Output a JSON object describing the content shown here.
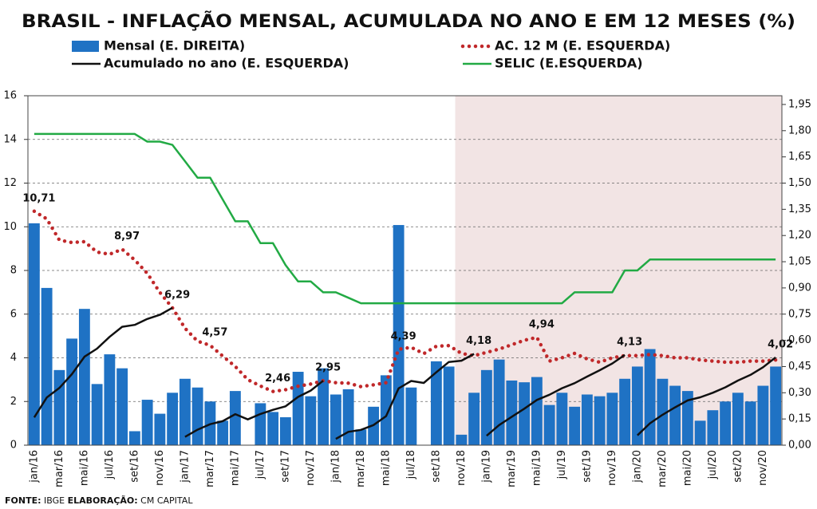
{
  "chart_data": {
    "type": "combo",
    "title": "BRASIL - INFLAÇÃO MENSAL, ACUMULADA NO ANO E EM 12 MESES (%)",
    "source": {
      "label": "FONTE:",
      "text": "IBGE",
      "credit_label": "ELABORAÇÃO:",
      "credit": "CM CAPITAL"
    },
    "categories": [
      "jan/16",
      null,
      "mar/16",
      null,
      "mai/16",
      null,
      "jul/16",
      null,
      "set/16",
      null,
      "nov/16",
      null,
      "jan/17",
      null,
      "mar/17",
      null,
      "mai/17",
      null,
      "jul/17",
      null,
      "set/17",
      null,
      "nov/17",
      null,
      "jan/18",
      null,
      "mar/18",
      null,
      "mai/18",
      null,
      "jul/18",
      null,
      "set/18",
      null,
      "nov/18",
      null,
      "jan/19",
      null,
      "mar/19",
      null,
      "mai/19",
      null,
      "jul/19",
      null,
      "set/19",
      null,
      "nov/19",
      null,
      "jan/20",
      null,
      "mar/20",
      null,
      "mai/20",
      null,
      "jul/20",
      null,
      "set/20",
      null,
      "nov/20",
      null
    ],
    "ylim": [
      0,
      16
    ],
    "yticks": [
      0,
      2,
      4,
      6,
      8,
      10,
      12,
      14,
      16
    ],
    "y2lim": [
      0,
      2.0
    ],
    "y2ticks": [
      {
        "value": 0,
        "label": "0,00"
      },
      {
        "value": 0.15,
        "label": "0,15"
      },
      {
        "value": 0.3,
        "label": "0,30"
      },
      {
        "value": 0.45,
        "label": "0,45"
      },
      {
        "value": 0.6,
        "label": "0,60"
      },
      {
        "value": 0.75,
        "label": "0,75"
      },
      {
        "value": 0.9,
        "label": "0,90"
      },
      {
        "value": 1.05,
        "label": "1,05"
      },
      {
        "value": 1.2,
        "label": "1,20"
      },
      {
        "value": 1.35,
        "label": "1,35"
      },
      {
        "value": 1.5,
        "label": "1,50"
      },
      {
        "value": 1.65,
        "label": "1,65"
      },
      {
        "value": 1.8,
        "label": "1,80"
      },
      {
        "value": 1.95,
        "label": "1,95"
      }
    ],
    "grid": true,
    "series": [
      {
        "name": "Mensal (E. DIREITA)",
        "type": "bar",
        "axis": "y2",
        "color": "#1f72c4",
        "values": [
          1.27,
          0.9,
          0.43,
          0.61,
          0.78,
          0.35,
          0.52,
          0.44,
          0.08,
          0.26,
          0.18,
          0.3,
          0.38,
          0.33,
          0.25,
          0.14,
          0.31,
          null,
          0.24,
          0.19,
          0.16,
          0.42,
          0.28,
          0.44,
          0.29,
          0.32,
          0.09,
          0.22,
          0.4,
          1.26,
          0.33,
          null,
          0.48,
          0.45,
          0.06,
          0.3,
          0.43,
          0.49,
          0.37,
          0.36,
          0.39,
          0.23,
          0.3,
          0.22,
          0.29,
          0.28,
          0.3,
          0.38,
          0.45,
          0.55,
          0.38,
          0.34,
          0.31,
          0.14,
          0.2,
          0.25,
          0.3,
          0.25,
          0.34,
          0.45
        ]
      },
      {
        "name": "AC. 12 M (E. ESQUERDA)",
        "type": "line",
        "dash": "dotted",
        "color": "#c0282a",
        "values": [
          10.71,
          10.36,
          9.39,
          9.28,
          9.32,
          8.84,
          8.74,
          8.97,
          8.48,
          7.87,
          6.99,
          6.29,
          5.35,
          4.76,
          4.57,
          4.08,
          3.6,
          3.0,
          2.71,
          2.46,
          2.54,
          2.7,
          2.8,
          2.95,
          2.86,
          2.84,
          2.68,
          2.76,
          2.86,
          4.39,
          4.48,
          4.19,
          4.53,
          4.56,
          4.2,
          4.1,
          4.25,
          4.4,
          4.6,
          4.8,
          4.94,
          3.85,
          4.0,
          4.2,
          3.95,
          3.8,
          4.0,
          4.1,
          4.1,
          4.15,
          4.1,
          4.0,
          4.0,
          3.9,
          3.85,
          3.8,
          3.8,
          3.85,
          3.85,
          3.9
        ],
        "value_labels": [
          "10,71",
          null,
          null,
          null,
          null,
          null,
          null,
          "8,97",
          null,
          null,
          null,
          null,
          null,
          null,
          "4,57",
          null,
          null,
          null,
          null,
          "2,46",
          null,
          null,
          null,
          null,
          null,
          null,
          null,
          null,
          null,
          "4,39",
          null,
          null,
          null,
          null,
          null,
          null,
          null,
          null,
          null,
          null,
          "4,94",
          null,
          null,
          null,
          null,
          null,
          null,
          null,
          null,
          null,
          null,
          null,
          null,
          null,
          null,
          null,
          null,
          null,
          null,
          null
        ]
      },
      {
        "name": "Acumulado no ano (E. ESQUERDA)",
        "type": "line",
        "dash": "solid",
        "yearly": true,
        "color": "#111111",
        "values": [
          1.27,
          2.18,
          2.62,
          3.25,
          4.05,
          4.42,
          4.96,
          5.42,
          5.51,
          5.78,
          5.97,
          6.29,
          0.38,
          0.71,
          0.96,
          1.1,
          1.42,
          1.18,
          1.43,
          1.62,
          1.78,
          2.21,
          2.5,
          2.95,
          0.29,
          0.61,
          0.7,
          0.92,
          1.33,
          2.6,
          2.94,
          2.85,
          3.34,
          3.81,
          3.87,
          4.18,
          0.43,
          0.92,
          1.3,
          1.67,
          2.07,
          2.31,
          2.61,
          2.84,
          3.14,
          3.43,
          3.74,
          4.13,
          0.45,
          1.0,
          1.39,
          1.73,
          2.05,
          2.19,
          2.4,
          2.65,
          2.96,
          3.22,
          3.57,
          4.02
        ],
        "value_labels": [
          null,
          null,
          null,
          null,
          null,
          null,
          null,
          null,
          null,
          null,
          null,
          "6,29",
          null,
          null,
          null,
          null,
          null,
          null,
          null,
          null,
          null,
          null,
          null,
          "2,95",
          null,
          null,
          null,
          null,
          null,
          null,
          null,
          null,
          null,
          null,
          null,
          "4,18",
          null,
          null,
          null,
          null,
          null,
          null,
          null,
          null,
          null,
          null,
          null,
          "4,13",
          null,
          null,
          null,
          null,
          null,
          null,
          null,
          null,
          null,
          null,
          null,
          "4,02"
        ]
      },
      {
        "name": "SELIC (E.ESQUERDA)",
        "type": "line",
        "dash": "solid",
        "color": "#22aa44",
        "values": [
          14.25,
          14.25,
          14.25,
          14.25,
          14.25,
          14.25,
          14.25,
          14.25,
          14.25,
          13.9,
          13.9,
          13.75,
          13.0,
          12.25,
          12.25,
          11.25,
          10.25,
          10.25,
          9.25,
          9.25,
          8.25,
          7.5,
          7.5,
          7.0,
          7.0,
          6.75,
          6.5,
          6.5,
          6.5,
          6.5,
          6.5,
          6.5,
          6.5,
          6.5,
          6.5,
          6.5,
          6.5,
          6.5,
          6.5,
          6.5,
          6.5,
          6.5,
          6.5,
          7.0,
          7.0,
          7.0,
          7.0,
          8.0,
          8.0,
          8.5,
          8.5,
          8.5,
          8.5,
          8.5,
          8.5,
          8.5,
          8.5,
          8.5,
          8.5,
          8.5
        ]
      }
    ]
  }
}
